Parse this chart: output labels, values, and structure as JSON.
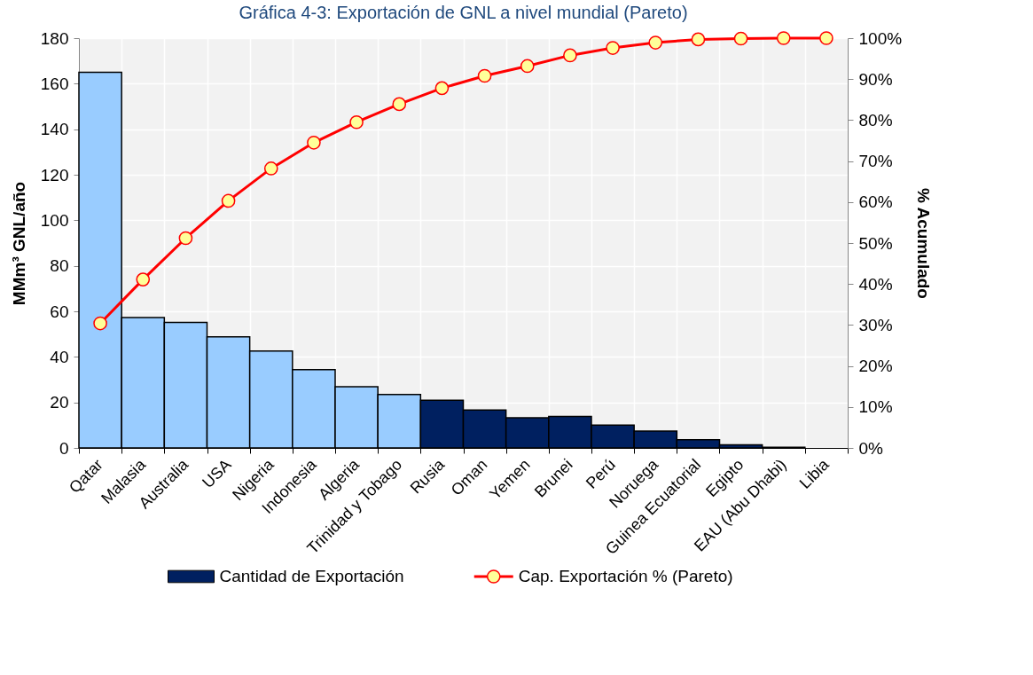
{
  "chart_data": {
    "type": "bar",
    "title": "Gráfica 4-3: Exportación de GNL a nivel mundial (Pareto)",
    "ylabel": "MMm³ GNL/año",
    "y2label": "% Acumulado",
    "categories": [
      "Qatar",
      "Malasia",
      "Australia",
      "USA",
      "Nigeria",
      "Indonesia",
      "Algeria",
      "Trinidad y Tobago",
      "Rusia",
      "Oman",
      "Yemen",
      "Brunei",
      "Perú",
      "Noruega",
      "Guinea Ecuatorial",
      "Egipto",
      "EAU (Abu Dhabi)",
      "Libia"
    ],
    "series": [
      {
        "name": "Cantidad de Exportación",
        "color": "#002060",
        "colors": [
          "#99ccff",
          "#99ccff",
          "#99ccff",
          "#99ccff",
          "#99ccff",
          "#99ccff",
          "#99ccff",
          "#99ccff",
          "#002060",
          "#002060",
          "#002060",
          "#002060",
          "#002060",
          "#002060",
          "#002060",
          "#002060",
          "#002060",
          "#002060"
        ],
        "values": [
          165,
          57.3,
          55.1,
          48.8,
          42.6,
          34.4,
          26.9,
          23.5,
          20.9,
          16.7,
          13.2,
          13.8,
          10.0,
          7.4,
          3.6,
          1.4,
          0.3,
          0
        ]
      },
      {
        "name": "Cap. Exportación % (Pareto)",
        "type": "line",
        "axis": "y2",
        "color": "#ff0000",
        "values": [
          30.4,
          41.1,
          51.2,
          60.3,
          68.2,
          74.5,
          79.5,
          83.9,
          87.8,
          90.8,
          93.2,
          95.8,
          97.6,
          98.9,
          99.7,
          99.9,
          100,
          100
        ]
      }
    ],
    "ylim": [
      0,
      180
    ],
    "yticks": [
      0,
      20,
      40,
      60,
      80,
      100,
      120,
      140,
      160,
      180
    ],
    "y2lim": [
      0,
      100
    ],
    "y2ticks": [
      {
        "value": 0,
        "label": "0%"
      },
      {
        "value": 10,
        "label": "10%"
      },
      {
        "value": 20,
        "label": "20%"
      },
      {
        "value": 30,
        "label": "30%"
      },
      {
        "value": 40,
        "label": "40%"
      },
      {
        "value": 50,
        "label": "50%"
      },
      {
        "value": 60,
        "label": "60%"
      },
      {
        "value": 70,
        "label": "70%"
      },
      {
        "value": 80,
        "label": "80%"
      },
      {
        "value": 90,
        "label": "90%"
      },
      {
        "value": 100,
        "label": "100%"
      }
    ],
    "grid": true,
    "legend": "bottom",
    "marker": "circle",
    "line_style": "solid"
  }
}
